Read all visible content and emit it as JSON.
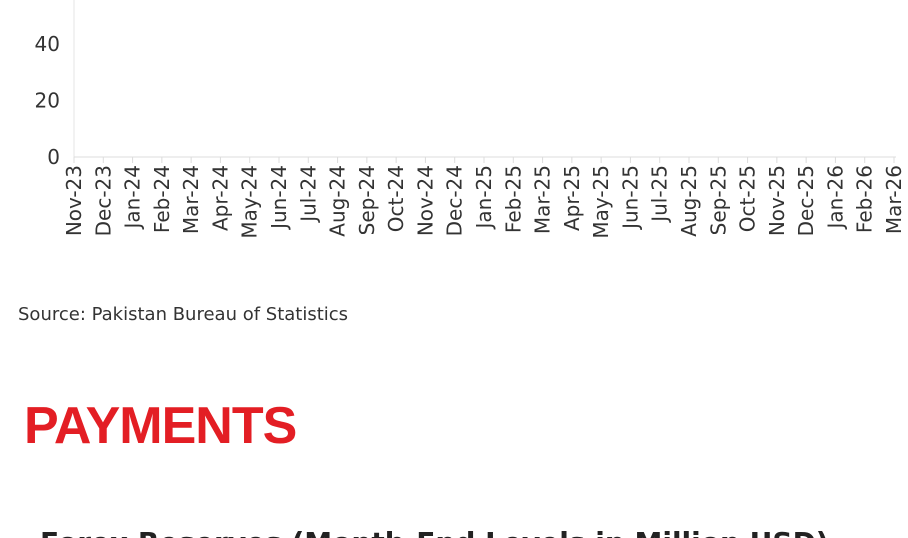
{
  "chart_data": {
    "type": "line",
    "categories": [
      "Nov-23",
      "Dec-23",
      "Jan-24",
      "Feb-24",
      "Mar-24",
      "Apr-24",
      "May-24",
      "Jun-24",
      "Jul-24",
      "Aug-24",
      "Sep-24",
      "Oct-24",
      "Nov-24",
      "Dec-24",
      "Jan-25",
      "Feb-25",
      "Mar-25",
      "Apr-25",
      "May-25",
      "Jun-25",
      "Jul-25",
      "Aug-25",
      "Sep-25",
      "Oct-25",
      "Nov-25",
      "Dec-25",
      "Jan-26",
      "Feb-26",
      "Mar-26"
    ],
    "ylim": [
      0,
      40
    ],
    "yticks": [
      0,
      20,
      40
    ],
    "grid": true
  },
  "source": "Source: Pakistan Bureau of Statistics",
  "section_heading": "PAYMENTS",
  "next_chart_title": "Forex Reserves (Month-End Levels in Million USD)"
}
